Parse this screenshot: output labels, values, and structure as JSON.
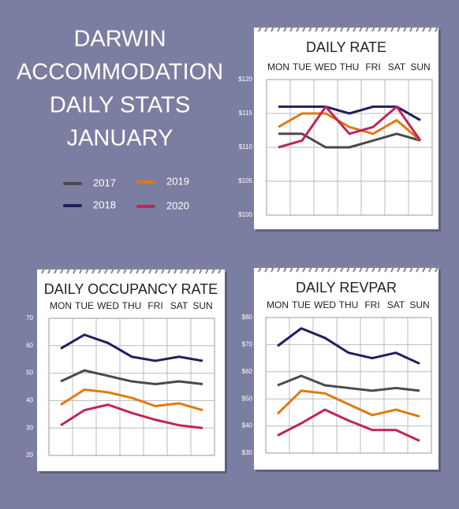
{
  "title": [
    "DARWIN",
    "ACCOMMODATION",
    "DAILY STATS",
    "JANUARY"
  ],
  "chart_data": [
    {
      "type": "line",
      "title": "DAILY RATE",
      "categories": [
        "MON",
        "TUE",
        "WED",
        "THU",
        "FRI",
        "SAT",
        "SUN"
      ],
      "series": [
        {
          "name": "2017",
          "color": "#4a4a4a",
          "values": [
            112,
            112,
            110,
            110,
            111,
            112,
            111
          ]
        },
        {
          "name": "2018",
          "color": "#1f1f5e",
          "values": [
            116,
            116,
            116,
            115,
            116,
            116,
            114
          ]
        },
        {
          "name": "2019",
          "color": "#e07a10",
          "values": [
            113,
            115,
            115,
            113,
            112,
            114,
            111
          ]
        },
        {
          "name": "2020",
          "color": "#c0245e",
          "values": [
            110,
            111,
            116,
            112,
            113,
            116,
            111
          ]
        }
      ],
      "ylim": [
        100,
        120
      ],
      "yticks": [
        {
          "value": 120,
          "label": "$120"
        },
        {
          "value": 115,
          "label": "$115"
        },
        {
          "value": 110,
          "label": "$110"
        },
        {
          "value": 105,
          "label": "$105"
        },
        {
          "value": 100,
          "label": "$100"
        }
      ],
      "grid": true
    },
    {
      "type": "line",
      "title": "DAILY OCCUPANCY RATE",
      "categories": [
        "MON",
        "TUE",
        "WED",
        "THU",
        "FRI",
        "SAT",
        "SUN"
      ],
      "series": [
        {
          "name": "2017",
          "color": "#4a4a4a",
          "values": [
            47,
            51,
            49,
            47,
            46,
            47,
            46
          ]
        },
        {
          "name": "2018",
          "color": "#1f1f5e",
          "values": [
            59,
            64,
            61,
            56,
            54.5,
            56,
            54.5
          ]
        },
        {
          "name": "2019",
          "color": "#e07a10",
          "values": [
            38.5,
            44,
            43,
            41,
            38,
            39,
            36.5
          ]
        },
        {
          "name": "2020",
          "color": "#c0245e",
          "values": [
            31,
            36.5,
            38.5,
            35.5,
            33,
            31,
            30
          ]
        }
      ],
      "ylim": [
        20,
        70
      ],
      "yticks": [
        70,
        60,
        50,
        40,
        30,
        20
      ],
      "grid": true
    },
    {
      "type": "line",
      "title": "DAILY REVPAR",
      "categories": [
        "MON",
        "TUE",
        "WED",
        "THU",
        "FRI",
        "SAT",
        "SUN"
      ],
      "series": [
        {
          "name": "2017",
          "color": "#4a4a4a",
          "values": [
            55,
            58.5,
            55,
            54,
            53,
            54,
            53
          ]
        },
        {
          "name": "2018",
          "color": "#1f1f5e",
          "values": [
            69.5,
            76,
            72.5,
            67,
            65,
            67,
            63
          ]
        },
        {
          "name": "2019",
          "color": "#e07a10",
          "values": [
            44.5,
            53,
            52,
            48,
            44,
            46,
            43.5
          ]
        },
        {
          "name": "2020",
          "color": "#c0245e",
          "values": [
            36.5,
            41,
            46,
            42,
            38.5,
            38.5,
            34.5
          ]
        }
      ],
      "ylim": [
        30,
        80
      ],
      "yticks": [
        {
          "value": 80,
          "label": "$80"
        },
        {
          "value": 70,
          "label": "$70"
        },
        {
          "value": 60,
          "label": "$60"
        },
        {
          "value": 50,
          "label": "$50"
        },
        {
          "value": 40,
          "label": "$40"
        },
        {
          "value": 30,
          "label": "$30"
        }
      ],
      "grid": true
    }
  ]
}
